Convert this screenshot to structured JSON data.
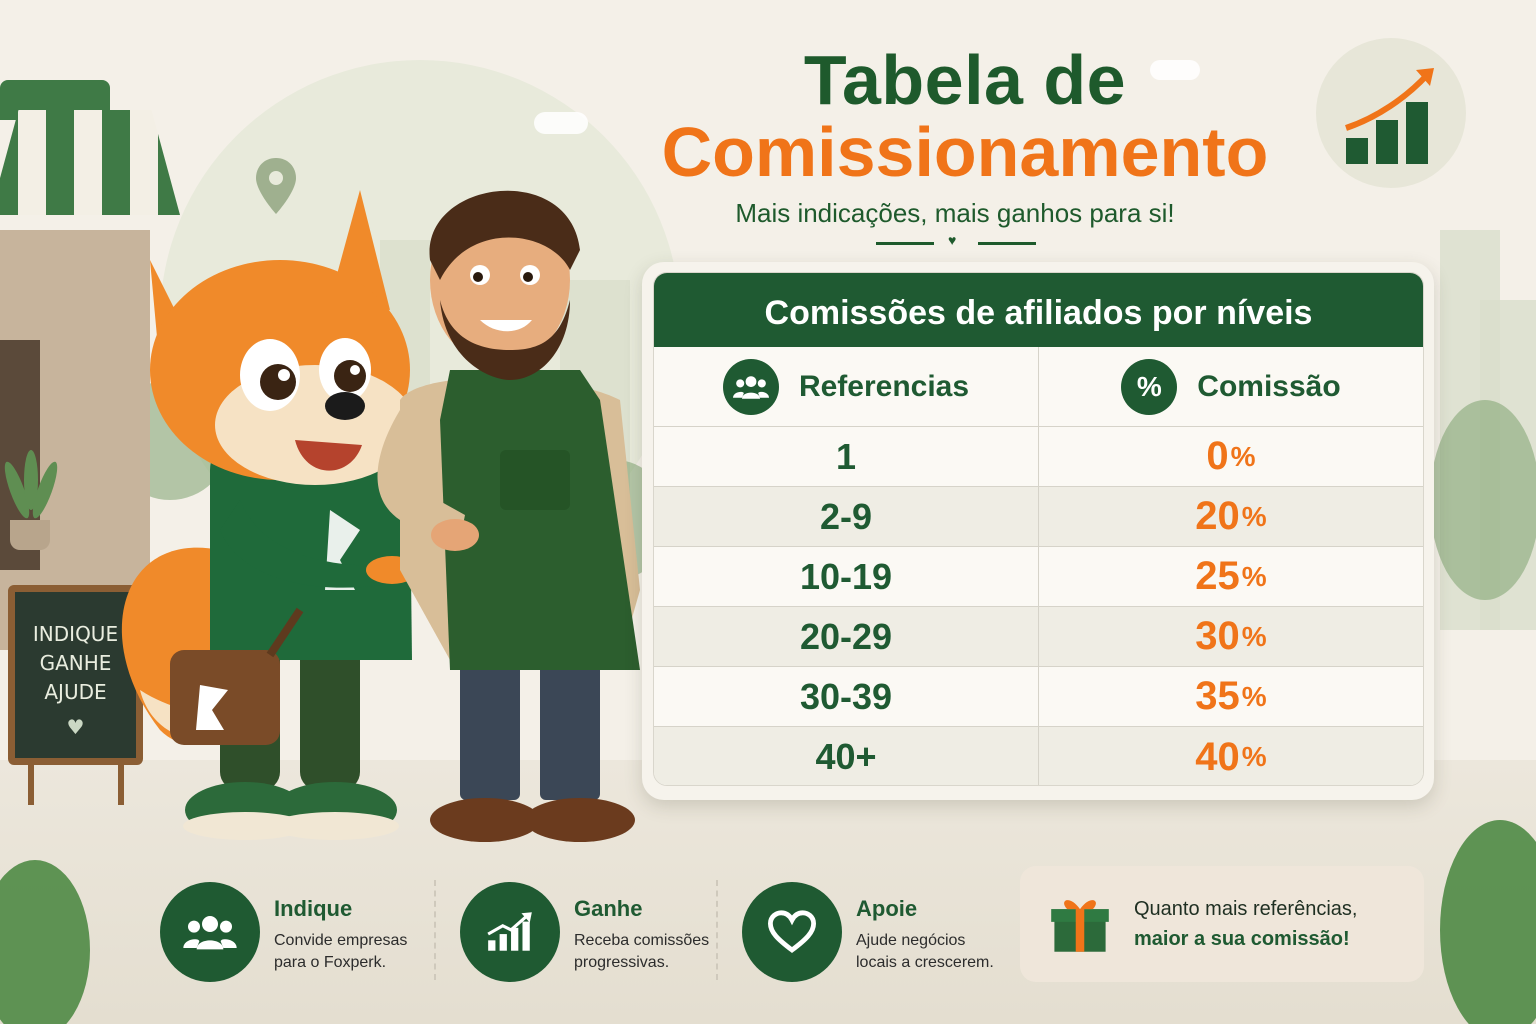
{
  "header": {
    "title_line1": "Tabela de",
    "title_line2": "Comissionamento",
    "subtitle": "Mais indicações, mais ganhos para si!"
  },
  "board": {
    "lines": [
      "INDIQUE",
      "GANHE",
      "AJUDE"
    ]
  },
  "table": {
    "title": "Comissões de afiliados por níveis",
    "columns": [
      "Referencias",
      "Comissão"
    ],
    "percent_symbol": "%",
    "rows": [
      {
        "refs": "1",
        "value": "0"
      },
      {
        "refs": "2-9",
        "value": "20"
      },
      {
        "refs": "10-19",
        "value": "25"
      },
      {
        "refs": "20-29",
        "value": "30"
      },
      {
        "refs": "30-39",
        "value": "35"
      },
      {
        "refs": "40+",
        "value": "40"
      }
    ]
  },
  "features": [
    {
      "title": "Indique",
      "desc": "Convide empresas para o Foxperk.",
      "icon": "people-icon"
    },
    {
      "title": "Ganhe",
      "desc": "Receba comissões progressivas.",
      "icon": "growth-chart-icon"
    },
    {
      "title": "Apoie",
      "desc": "Ajude negócios locais a crescerem.",
      "icon": "heart-icon"
    }
  ],
  "promo": {
    "line1": "Quanto mais referências,",
    "line2": "maior a sua comissão!",
    "icon": "gift-icon"
  },
  "colors": {
    "brand_green": "#1f5a32",
    "accent_orange": "#f07419",
    "background": "#f4f0e8"
  }
}
